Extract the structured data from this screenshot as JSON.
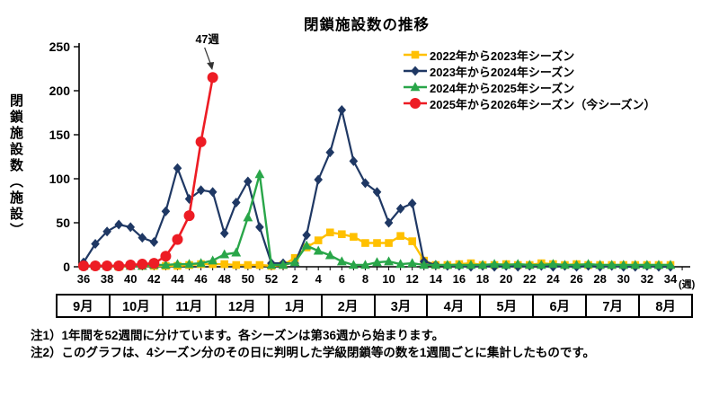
{
  "title": "閉鎖施設数の推移",
  "y_axis": {
    "label": "閉鎖施設数（施設）",
    "ticks": [
      0,
      50,
      100,
      150,
      200,
      250
    ],
    "max": 250
  },
  "x_axis": {
    "unit_label": "(週)",
    "labeled_weeks": [
      36,
      38,
      40,
      42,
      44,
      46,
      48,
      50,
      52,
      2,
      4,
      6,
      8,
      10,
      12,
      14,
      16,
      18,
      20,
      22,
      24,
      26,
      28,
      30,
      32,
      34
    ],
    "months": [
      "9月",
      "10月",
      "11月",
      "12月",
      "1月",
      "2月",
      "3月",
      "4月",
      "5月",
      "6月",
      "7月",
      "8月"
    ]
  },
  "legend": [
    {
      "label": "2022年から2023年シーズン",
      "color": "#FFC000",
      "marker": "square"
    },
    {
      "label": "2023年から2024年シーズン",
      "color": "#1F3864",
      "marker": "diamond"
    },
    {
      "label": "2024年から2025年シーズン",
      "color": "#29A649",
      "marker": "triangle"
    },
    {
      "label": "2025年から2026年シーズン（今シーズン）",
      "color": "#ED1C24",
      "marker": "circle"
    }
  ],
  "notes": [
    "注1）1年間を52週間に分けています。各シーズンは第36週から始まります。",
    "注2）このグラフは、4シーズン分のその日に判明した学級閉鎖等の数を1週間ごとに集計したものです。"
  ],
  "chart_data": {
    "type": "line",
    "title": "閉鎖施設数の推移",
    "ylabel": "閉鎖施設数（施設）",
    "ylim": [
      0,
      250
    ],
    "grid": false,
    "legend_position": "top-right",
    "x_weeks": [
      36,
      37,
      38,
      39,
      40,
      41,
      42,
      43,
      44,
      45,
      46,
      47,
      48,
      49,
      50,
      51,
      52,
      1,
      2,
      3,
      4,
      5,
      6,
      7,
      8,
      9,
      10,
      11,
      12,
      13,
      14,
      15,
      16,
      17,
      18,
      19,
      20,
      21,
      22,
      23,
      24,
      25,
      26,
      27,
      28,
      29,
      30,
      31,
      32,
      33,
      34
    ],
    "annotation": {
      "text": "47週",
      "week": 47,
      "value": 215
    },
    "series": [
      {
        "name": "2022年から2023年シーズン",
        "color": "#FFC000",
        "marker": "square",
        "width": 2.4,
        "values": [
          1,
          1,
          1,
          0,
          1,
          1,
          1,
          1,
          1,
          2,
          3,
          3,
          3,
          2,
          2,
          2,
          1,
          2,
          10,
          22,
          30,
          39,
          37,
          34,
          27,
          27,
          27,
          35,
          29,
          7,
          2,
          2,
          3,
          4,
          2,
          2,
          3,
          2,
          2,
          4,
          3,
          2,
          3,
          2,
          2,
          2,
          2,
          2,
          2,
          2,
          2
        ]
      },
      {
        "name": "2023年から2024年シーズン",
        "color": "#1F3864",
        "marker": "diamond",
        "width": 2.2,
        "values": [
          5,
          26,
          40,
          48,
          45,
          33,
          28,
          63,
          112,
          77,
          87,
          85,
          38,
          73,
          97,
          45,
          4,
          4,
          4,
          36,
          99,
          130,
          178,
          120,
          95,
          85,
          50,
          66,
          72,
          6,
          2,
          1,
          1,
          0,
          1,
          0,
          1,
          0,
          1,
          1,
          0,
          1,
          0,
          1,
          0,
          1,
          0,
          0,
          1,
          0,
          0
        ]
      },
      {
        "name": "2024年から2025年シーズン",
        "color": "#29A649",
        "marker": "triangle",
        "width": 2.4,
        "values": [
          1,
          1,
          1,
          1,
          1,
          1,
          2,
          2,
          3,
          3,
          4,
          7,
          14,
          16,
          56,
          105,
          2,
          2,
          5,
          24,
          18,
          13,
          6,
          2,
          2,
          5,
          6,
          3,
          4,
          2,
          2,
          2,
          2,
          2,
          2,
          3,
          2,
          3,
          2,
          2,
          3,
          2,
          2,
          3,
          2,
          2,
          2,
          2,
          2,
          2,
          2
        ]
      },
      {
        "name": "2025年から2026年シーズン（今シーズン）",
        "color": "#ED1C24",
        "marker": "circle",
        "width": 2.6,
        "values": [
          1,
          1,
          1,
          1,
          2,
          3,
          4,
          12,
          31,
          58,
          142,
          215,
          null,
          null,
          null,
          null,
          null,
          null,
          null,
          null,
          null,
          null,
          null,
          null,
          null,
          null,
          null,
          null,
          null,
          null,
          null,
          null,
          null,
          null,
          null,
          null,
          null,
          null,
          null,
          null,
          null,
          null,
          null,
          null,
          null,
          null,
          null,
          null,
          null,
          null,
          null
        ]
      }
    ]
  }
}
